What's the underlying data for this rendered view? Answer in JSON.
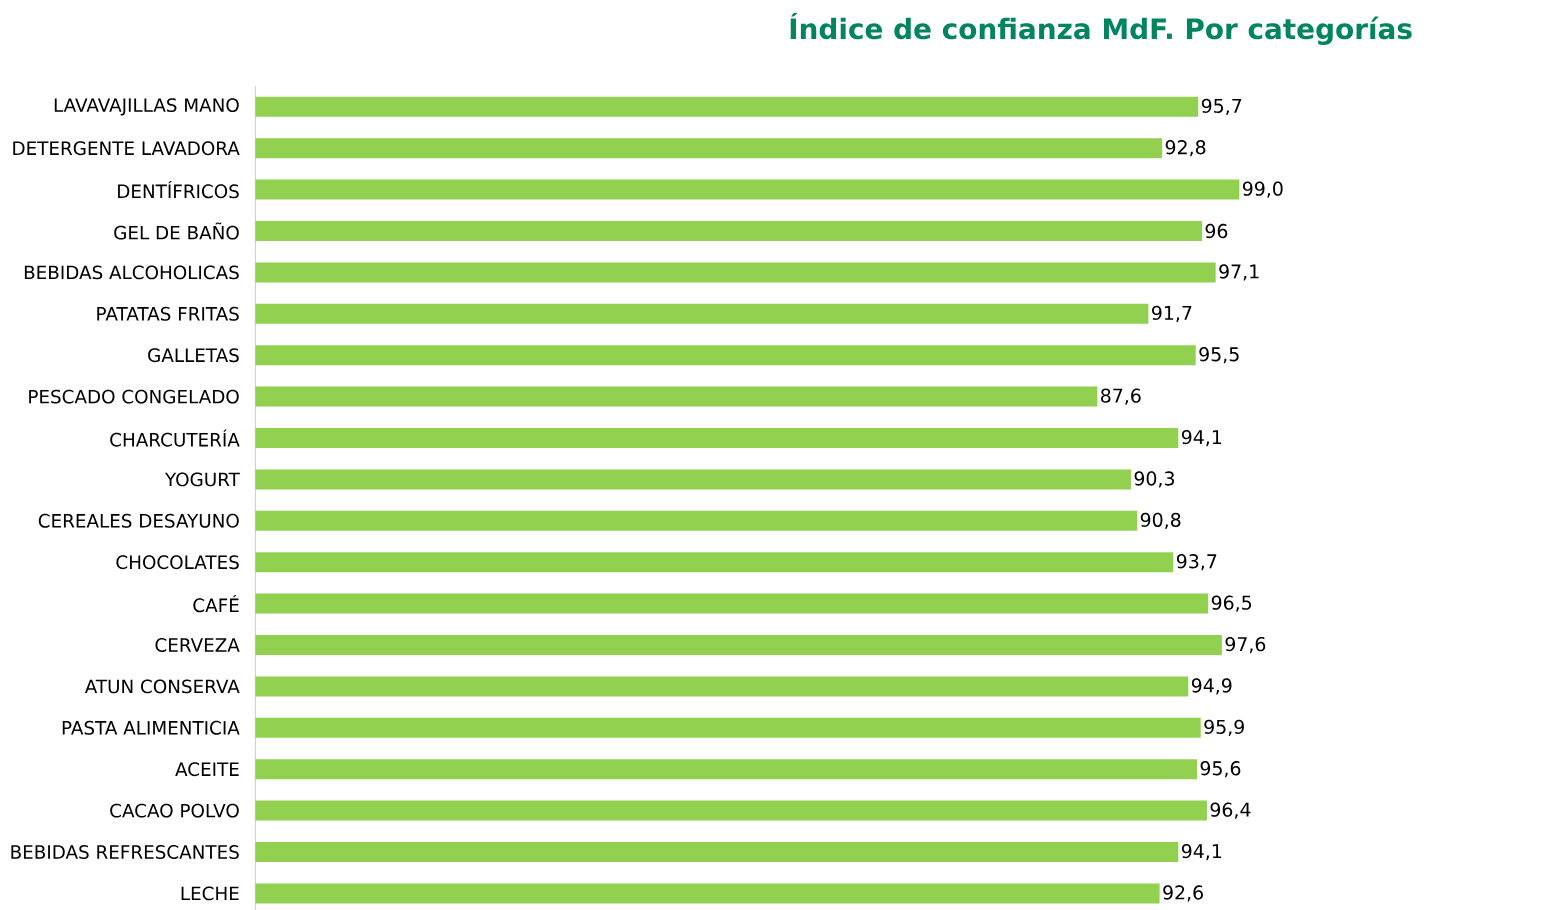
{
  "chart_data": {
    "type": "bar",
    "orientation": "horizontal",
    "title": "Índice de confianza MdF. Por categorías",
    "categories": [
      "LAVAVAJILLAS MANO",
      "DETERGENTE LAVADORA",
      "DENTÍFRICOS",
      "GEL DE BAÑO",
      "BEBIDAS ALCOHOLICAS",
      "PATATAS FRITAS",
      "GALLETAS",
      "PESCADO CONGELADO",
      "CHARCUTERÍA",
      "YOGURT",
      "CEREALES DESAYUNO",
      "CHOCOLATES",
      "CAFÉ",
      "CERVEZA",
      "ATUN CONSERVA",
      "PASTA ALIMENTICIA",
      "ACEITE",
      "CACAO POLVO",
      "BEBIDAS REFRESCANTES",
      "LECHE"
    ],
    "values": [
      95.7,
      92.8,
      99.0,
      96,
      97.1,
      91.7,
      95.5,
      87.6,
      94.1,
      90.3,
      90.8,
      93.7,
      96.5,
      97.6,
      94.9,
      95.9,
      95.6,
      96.4,
      94.1,
      92.6
    ],
    "value_labels": [
      "95,7",
      "92,8",
      "99,0",
      "96",
      "97,1",
      "91,7",
      "95,5",
      "87,6",
      "94,1",
      "90,3",
      "90,8",
      "93,7",
      "96,5",
      "97,6",
      "94,9",
      "95,9",
      "95,6",
      "96,4",
      "94,1",
      "92,6"
    ],
    "color": "#92d050",
    "xlim": [
      20,
      99
    ],
    "tick_labels": "y"
  }
}
